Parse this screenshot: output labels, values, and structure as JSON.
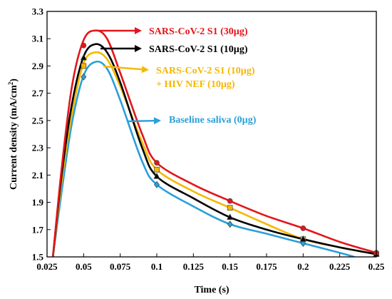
{
  "chart_data": {
    "type": "line",
    "xlabel": "Time (s)",
    "ylabel": "Current density (mA/cm",
    "ylabel_sup": "2",
    "ylabel_end": ")",
    "xlim": [
      0.025,
      0.25
    ],
    "ylim": [
      1.5,
      3.3
    ],
    "xticks": [
      "0.025",
      "0.05",
      "0.075",
      "0.1",
      "0.125",
      "0.15",
      "0.175",
      "0.2",
      "0.225",
      "0.25"
    ],
    "yticks": [
      "1.5",
      "1.7",
      "1.9",
      "2.1",
      "2.3",
      "2.5",
      "2.7",
      "2.9",
      "3.1",
      "3.3"
    ],
    "grid": false,
    "series": [
      {
        "label": "SARS-CoV-2 S1 (30µg)",
        "color": "#e3161c",
        "marker": "circle",
        "markers_x": [
          0.05,
          0.1,
          0.15,
          0.2,
          0.25
        ],
        "markers_y": [
          3.05,
          2.19,
          1.91,
          1.71,
          1.53
        ],
        "curve_x": [
          0.029,
          0.035,
          0.042,
          0.05,
          0.058,
          0.066,
          0.075,
          0.09,
          0.1,
          0.125,
          0.15,
          0.175,
          0.2,
          0.225,
          0.25
        ],
        "curve_y": [
          1.5,
          2.15,
          2.75,
          3.09,
          3.16,
          3.1,
          2.85,
          2.4,
          2.19,
          2.03,
          1.91,
          1.8,
          1.71,
          1.61,
          1.53
        ]
      },
      {
        "label": "SARS-CoV-2 S1 (10µg)",
        "color": "#000000",
        "marker": "triangle",
        "markers_x": [
          0.05,
          0.1,
          0.15,
          0.2,
          0.25
        ],
        "markers_y": [
          2.96,
          2.09,
          1.79,
          1.63,
          1.52
        ],
        "curve_x": [
          0.029,
          0.035,
          0.042,
          0.05,
          0.058,
          0.066,
          0.075,
          0.09,
          0.1,
          0.125,
          0.15,
          0.175,
          0.2,
          0.225,
          0.25
        ],
        "curve_y": [
          1.5,
          2.1,
          2.62,
          2.97,
          3.06,
          3.0,
          2.78,
          2.3,
          2.09,
          1.93,
          1.79,
          1.7,
          1.63,
          1.57,
          1.52
        ]
      },
      {
        "label": "SARS-CoV-2 S1 (10µg)",
        "label_line2": "+ HIV NEF (10µg)",
        "color": "#f5b800",
        "marker": "square",
        "markers_x": [
          0.05,
          0.1,
          0.15,
          0.2,
          0.25
        ],
        "markers_y": [
          2.9,
          2.14,
          1.86,
          1.63,
          1.52
        ],
        "curve_x": [
          0.029,
          0.035,
          0.042,
          0.05,
          0.058,
          0.066,
          0.075,
          0.09,
          0.1,
          0.125,
          0.15,
          0.175,
          0.2,
          0.225,
          0.25
        ],
        "curve_y": [
          1.5,
          2.05,
          2.55,
          2.92,
          3.0,
          2.95,
          2.75,
          2.34,
          2.14,
          1.98,
          1.86,
          1.74,
          1.63,
          1.57,
          1.52
        ]
      },
      {
        "label": "Baseline saliva (0µg)",
        "color": "#2a9fd8",
        "marker": "diamond",
        "markers_x": [
          0.05,
          0.1,
          0.15,
          0.2
        ],
        "markers_y": [
          2.82,
          2.03,
          1.74,
          1.6
        ],
        "curve_x": [
          0.029,
          0.035,
          0.042,
          0.05,
          0.058,
          0.066,
          0.075,
          0.09,
          0.1,
          0.125,
          0.15,
          0.175,
          0.2,
          0.225,
          0.235
        ],
        "curve_y": [
          1.5,
          1.98,
          2.48,
          2.83,
          2.93,
          2.88,
          2.65,
          2.2,
          2.03,
          1.87,
          1.74,
          1.67,
          1.6,
          1.53,
          1.5
        ]
      }
    ]
  }
}
